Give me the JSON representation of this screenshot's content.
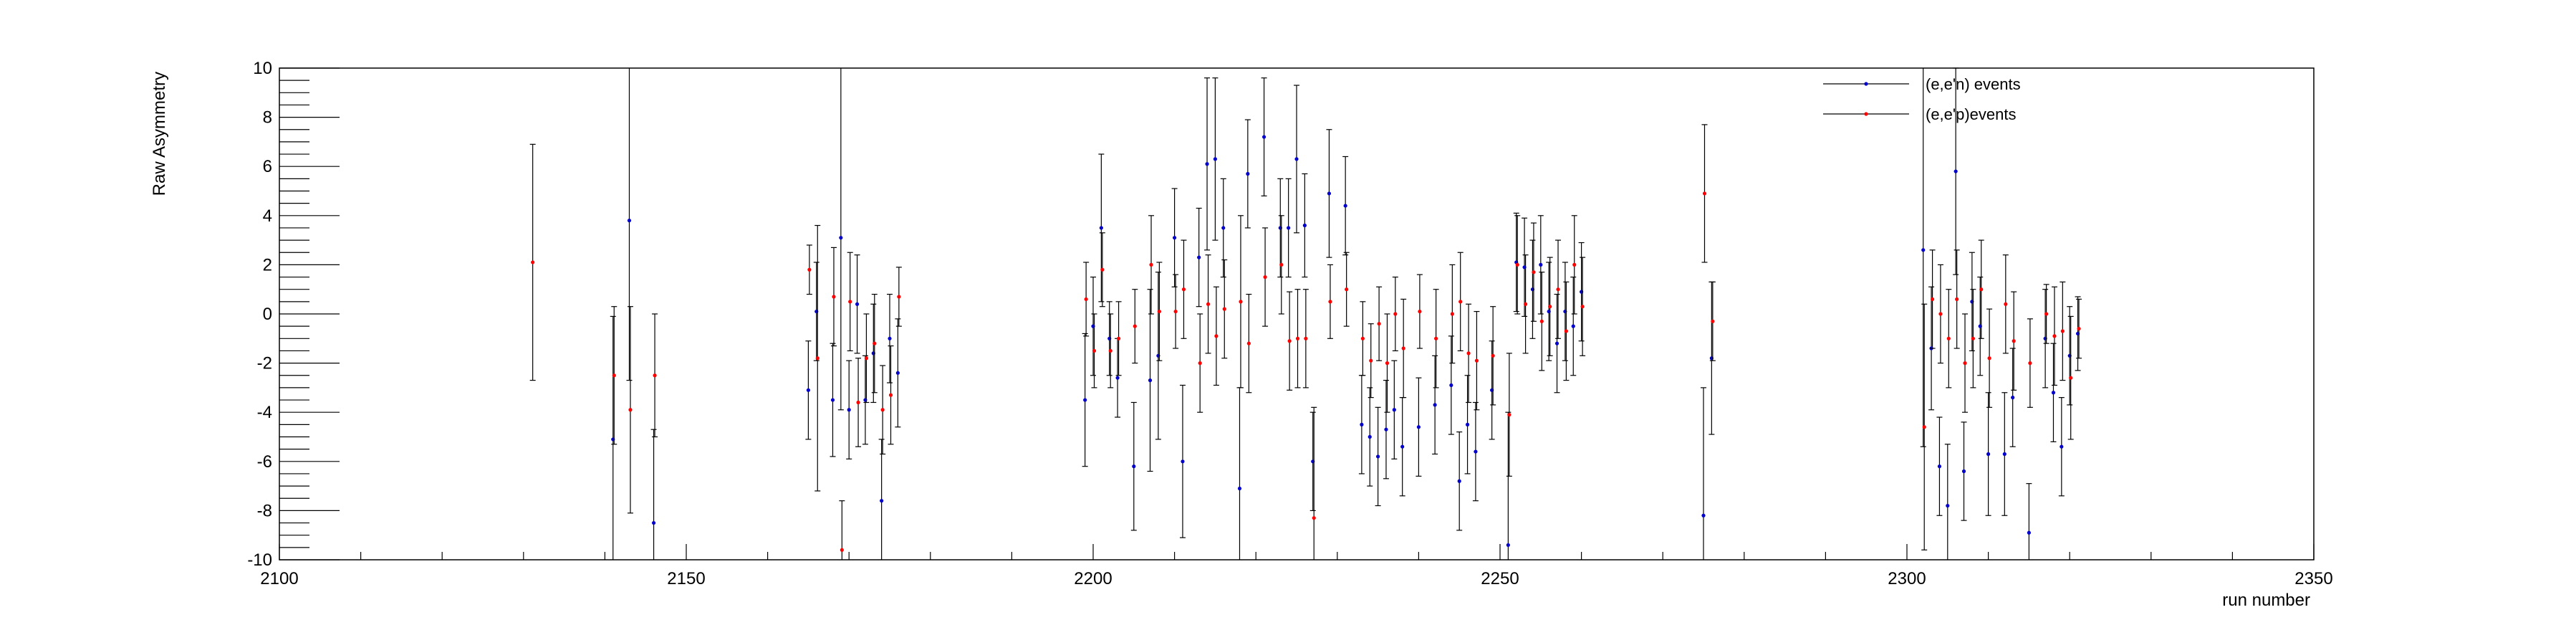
{
  "chart_data": {
    "type": "scatter",
    "title": "",
    "xlabel": "run number",
    "ylabel": "Raw Asymmetry",
    "xlim": [
      2100,
      2350
    ],
    "ylim": [
      -10,
      10
    ],
    "xticks": [
      2100,
      2150,
      2200,
      2250,
      2300,
      2350
    ],
    "yticks": [
      -10,
      -8,
      -6,
      -4,
      -2,
      0,
      2,
      4,
      6,
      8,
      10
    ],
    "grid": false,
    "legend_position": "top-right",
    "series": [
      {
        "name": "(e,e'n) events",
        "color": "#0000cc",
        "points": [
          {
            "x": 2141,
            "y": -5.1,
            "err": 5.0
          },
          {
            "x": 2143,
            "y": 3.8,
            "err": 6.5
          },
          {
            "x": 2146,
            "y": -8.5,
            "err": 3.8
          },
          {
            "x": 2165,
            "y": -3.1,
            "err": 2.0
          },
          {
            "x": 2166,
            "y": 0.1,
            "err": 2.0
          },
          {
            "x": 2168,
            "y": -3.5,
            "err": 2.3
          },
          {
            "x": 2169,
            "y": 3.1,
            "err": 7.0
          },
          {
            "x": 2170,
            "y": -3.9,
            "err": 2.0
          },
          {
            "x": 2171,
            "y": 0.4,
            "err": 2.0
          },
          {
            "x": 2172,
            "y": -3.5,
            "err": 1.8
          },
          {
            "x": 2173,
            "y": -1.6,
            "err": 2.0
          },
          {
            "x": 2174,
            "y": -7.6,
            "err": 2.5
          },
          {
            "x": 2175,
            "y": -1.0,
            "err": 1.8
          },
          {
            "x": 2176,
            "y": -2.4,
            "err": 2.2
          },
          {
            "x": 2199,
            "y": -3.5,
            "err": 2.7
          },
          {
            "x": 2200,
            "y": -0.5,
            "err": 2.0
          },
          {
            "x": 2201,
            "y": 3.5,
            "err": 3.0
          },
          {
            "x": 2202,
            "y": -1.0,
            "err": 1.5
          },
          {
            "x": 2203,
            "y": -2.6,
            "err": 1.6
          },
          {
            "x": 2205,
            "y": -6.2,
            "err": 2.6
          },
          {
            "x": 2207,
            "y": -2.7,
            "err": 3.7
          },
          {
            "x": 2208,
            "y": -1.7,
            "err": 3.4
          },
          {
            "x": 2210,
            "y": 3.1,
            "err": 2.0
          },
          {
            "x": 2211,
            "y": -6.0,
            "err": 3.1
          },
          {
            "x": 2213,
            "y": 2.3,
            "err": 2.0
          },
          {
            "x": 2214,
            "y": 6.1,
            "err": 3.5
          },
          {
            "x": 2215,
            "y": 6.3,
            "err": 3.3
          },
          {
            "x": 2216,
            "y": 3.5,
            "err": 2.0
          },
          {
            "x": 2218,
            "y": -7.1,
            "err": 4.1
          },
          {
            "x": 2219,
            "y": 5.7,
            "err": 2.2
          },
          {
            "x": 2221,
            "y": 7.2,
            "err": 2.4
          },
          {
            "x": 2223,
            "y": 3.5,
            "err": 2.0
          },
          {
            "x": 2224,
            "y": 3.5,
            "err": 2.0
          },
          {
            "x": 2225,
            "y": 6.3,
            "err": 3.0
          },
          {
            "x": 2226,
            "y": 3.6,
            "err": 2.1
          },
          {
            "x": 2227,
            "y": -6.0,
            "err": 2.0
          },
          {
            "x": 2229,
            "y": 4.9,
            "err": 2.6
          },
          {
            "x": 2231,
            "y": 4.4,
            "err": 2.0
          },
          {
            "x": 2233,
            "y": -4.5,
            "err": 2.0
          },
          {
            "x": 2234,
            "y": -5.0,
            "err": 2.0
          },
          {
            "x": 2235,
            "y": -5.8,
            "err": 2.0
          },
          {
            "x": 2236,
            "y": -4.7,
            "err": 2.0
          },
          {
            "x": 2237,
            "y": -3.9,
            "err": 2.0
          },
          {
            "x": 2238,
            "y": -5.4,
            "err": 2.0
          },
          {
            "x": 2240,
            "y": -4.6,
            "err": 2.0
          },
          {
            "x": 2242,
            "y": -3.7,
            "err": 2.0
          },
          {
            "x": 2244,
            "y": -2.9,
            "err": 2.0
          },
          {
            "x": 2245,
            "y": -6.8,
            "err": 2.0
          },
          {
            "x": 2246,
            "y": -4.5,
            "err": 2.0
          },
          {
            "x": 2247,
            "y": -5.6,
            "err": 2.0
          },
          {
            "x": 2249,
            "y": -3.1,
            "err": 2.0
          },
          {
            "x": 2251,
            "y": -9.4,
            "err": 5.4
          },
          {
            "x": 2252,
            "y": 2.1,
            "err": 2.0
          },
          {
            "x": 2253,
            "y": 1.9,
            "err": 2.0
          },
          {
            "x": 2254,
            "y": 1.0,
            "err": 2.0
          },
          {
            "x": 2255,
            "y": 2.0,
            "err": 2.0
          },
          {
            "x": 2256,
            "y": 0.1,
            "err": 2.0
          },
          {
            "x": 2257,
            "y": -1.2,
            "err": 2.0
          },
          {
            "x": 2258,
            "y": 0.1,
            "err": 2.0
          },
          {
            "x": 2259,
            "y": -0.5,
            "err": 2.0
          },
          {
            "x": 2260,
            "y": 0.9,
            "err": 2.0
          },
          {
            "x": 2275,
            "y": -8.2,
            "err": 5.2
          },
          {
            "x": 2276,
            "y": -1.8,
            "err": 3.1
          },
          {
            "x": 2302,
            "y": 2.6,
            "err": 8.0
          },
          {
            "x": 2303,
            "y": -1.4,
            "err": 2.5
          },
          {
            "x": 2304,
            "y": -6.2,
            "err": 2.0
          },
          {
            "x": 2305,
            "y": -7.8,
            "err": 2.5
          },
          {
            "x": 2306,
            "y": 5.8,
            "err": 4.2
          },
          {
            "x": 2307,
            "y": -6.4,
            "err": 2.0
          },
          {
            "x": 2308,
            "y": 0.5,
            "err": 2.0
          },
          {
            "x": 2309,
            "y": -0.5,
            "err": 2.0
          },
          {
            "x": 2310,
            "y": -5.7,
            "err": 2.5
          },
          {
            "x": 2312,
            "y": -5.7,
            "err": 2.5
          },
          {
            "x": 2313,
            "y": -3.4,
            "err": 2.0
          },
          {
            "x": 2315,
            "y": -8.9,
            "err": 2.0
          },
          {
            "x": 2317,
            "y": -1.0,
            "err": 2.0
          },
          {
            "x": 2318,
            "y": -3.2,
            "err": 2.0
          },
          {
            "x": 2319,
            "y": -5.4,
            "err": 2.0
          },
          {
            "x": 2320,
            "y": -1.7,
            "err": 2.0
          },
          {
            "x": 2321,
            "y": -0.8,
            "err": 1.5
          }
        ]
      },
      {
        "name": "(e,e'p)events",
        "color": "#ff0000",
        "points": [
          {
            "x": 2131,
            "y": 2.1,
            "err": 4.8
          },
          {
            "x": 2141,
            "y": -2.5,
            "err": 2.8
          },
          {
            "x": 2143,
            "y": -3.9,
            "err": 4.2
          },
          {
            "x": 2146,
            "y": -2.5,
            "err": 2.5
          },
          {
            "x": 2165,
            "y": 1.8,
            "err": 1.0
          },
          {
            "x": 2166,
            "y": -1.8,
            "err": 5.4
          },
          {
            "x": 2168,
            "y": 0.7,
            "err": 2.0
          },
          {
            "x": 2169,
            "y": -9.6,
            "err": 2.0
          },
          {
            "x": 2170,
            "y": 0.5,
            "err": 2.0
          },
          {
            "x": 2171,
            "y": -3.6,
            "err": 1.8
          },
          {
            "x": 2172,
            "y": -1.8,
            "err": 1.8
          },
          {
            "x": 2173,
            "y": -1.2,
            "err": 2.0
          },
          {
            "x": 2174,
            "y": -3.9,
            "err": 1.8
          },
          {
            "x": 2175,
            "y": -3.3,
            "err": 2.0
          },
          {
            "x": 2176,
            "y": 0.7,
            "err": 1.2
          },
          {
            "x": 2199,
            "y": 0.6,
            "err": 1.5
          },
          {
            "x": 2200,
            "y": -1.5,
            "err": 1.5
          },
          {
            "x": 2201,
            "y": 1.8,
            "err": 1.5
          },
          {
            "x": 2202,
            "y": -1.5,
            "err": 1.5
          },
          {
            "x": 2203,
            "y": -1.0,
            "err": 1.5
          },
          {
            "x": 2205,
            "y": -0.5,
            "err": 1.5
          },
          {
            "x": 2207,
            "y": 2.0,
            "err": 2.0
          },
          {
            "x": 2208,
            "y": 0.1,
            "err": 2.0
          },
          {
            "x": 2210,
            "y": 0.1,
            "err": 1.5
          },
          {
            "x": 2211,
            "y": 1.0,
            "err": 2.0
          },
          {
            "x": 2213,
            "y": -2.0,
            "err": 2.0
          },
          {
            "x": 2214,
            "y": 0.4,
            "err": 2.0
          },
          {
            "x": 2215,
            "y": -0.9,
            "err": 2.0
          },
          {
            "x": 2216,
            "y": 0.2,
            "err": 2.0
          },
          {
            "x": 2218,
            "y": 0.5,
            "err": 3.5
          },
          {
            "x": 2219,
            "y": -1.2,
            "err": 2.0
          },
          {
            "x": 2221,
            "y": 1.5,
            "err": 2.0
          },
          {
            "x": 2223,
            "y": 2.0,
            "err": 2.0
          },
          {
            "x": 2224,
            "y": -1.1,
            "err": 2.0
          },
          {
            "x": 2225,
            "y": -1.0,
            "err": 2.0
          },
          {
            "x": 2226,
            "y": -1.0,
            "err": 2.0
          },
          {
            "x": 2227,
            "y": -8.3,
            "err": 4.5
          },
          {
            "x": 2229,
            "y": 0.5,
            "err": 1.5
          },
          {
            "x": 2231,
            "y": 1.0,
            "err": 1.5
          },
          {
            "x": 2233,
            "y": -1.0,
            "err": 1.5
          },
          {
            "x": 2234,
            "y": -1.9,
            "err": 1.5
          },
          {
            "x": 2235,
            "y": -0.4,
            "err": 1.5
          },
          {
            "x": 2236,
            "y": -2.0,
            "err": 2.0
          },
          {
            "x": 2237,
            "y": 0.0,
            "err": 1.5
          },
          {
            "x": 2238,
            "y": -1.4,
            "err": 2.0
          },
          {
            "x": 2240,
            "y": 0.1,
            "err": 1.5
          },
          {
            "x": 2242,
            "y": -1.0,
            "err": 2.0
          },
          {
            "x": 2244,
            "y": 0.0,
            "err": 2.0
          },
          {
            "x": 2245,
            "y": 0.5,
            "err": 2.0
          },
          {
            "x": 2246,
            "y": -1.6,
            "err": 2.0
          },
          {
            "x": 2247,
            "y": -1.9,
            "err": 2.0
          },
          {
            "x": 2249,
            "y": -1.7,
            "err": 2.0
          },
          {
            "x": 2251,
            "y": -4.1,
            "err": 2.5
          },
          {
            "x": 2252,
            "y": 2.0,
            "err": 2.0
          },
          {
            "x": 2253,
            "y": 0.4,
            "err": 2.0
          },
          {
            "x": 2254,
            "y": 1.7,
            "err": 2.0
          },
          {
            "x": 2255,
            "y": -0.3,
            "err": 2.0
          },
          {
            "x": 2256,
            "y": 0.3,
            "err": 2.0
          },
          {
            "x": 2257,
            "y": 1.0,
            "err": 2.0
          },
          {
            "x": 2258,
            "y": -0.7,
            "err": 2.0
          },
          {
            "x": 2259,
            "y": 2.0,
            "err": 2.0
          },
          {
            "x": 2260,
            "y": 0.3,
            "err": 2.0
          },
          {
            "x": 2275,
            "y": 4.9,
            "err": 2.8
          },
          {
            "x": 2276,
            "y": -0.3,
            "err": 1.6
          },
          {
            "x": 2302,
            "y": -4.6,
            "err": 5.0
          },
          {
            "x": 2303,
            "y": 0.6,
            "err": 2.0
          },
          {
            "x": 2304,
            "y": 0.0,
            "err": 2.0
          },
          {
            "x": 2305,
            "y": -1.0,
            "err": 2.0
          },
          {
            "x": 2306,
            "y": 0.6,
            "err": 2.0
          },
          {
            "x": 2307,
            "y": -2.0,
            "err": 2.0
          },
          {
            "x": 2308,
            "y": -1.0,
            "err": 2.0
          },
          {
            "x": 2309,
            "y": 1.0,
            "err": 2.0
          },
          {
            "x": 2310,
            "y": -1.8,
            "err": 2.0
          },
          {
            "x": 2312,
            "y": 0.4,
            "err": 2.0
          },
          {
            "x": 2313,
            "y": -1.1,
            "err": 2.0
          },
          {
            "x": 2315,
            "y": -2.0,
            "err": 1.8
          },
          {
            "x": 2317,
            "y": 0.0,
            "err": 1.2
          },
          {
            "x": 2318,
            "y": -0.9,
            "err": 2.0
          },
          {
            "x": 2319,
            "y": -0.7,
            "err": 2.0
          },
          {
            "x": 2320,
            "y": -2.6,
            "err": 2.5
          },
          {
            "x": 2321,
            "y": -0.6,
            "err": 1.2
          }
        ]
      }
    ]
  }
}
